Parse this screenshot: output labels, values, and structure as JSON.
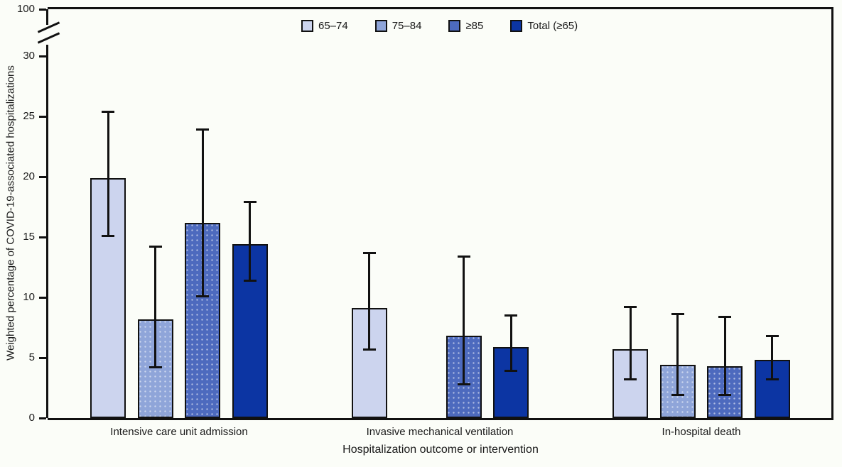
{
  "figure": {
    "y_axis_label": "Weighted percentage of COVID-19-associated hospitalizations",
    "x_axis_label": "Hospitalization outcome or intervention",
    "y_break_top_tick_label": "100"
  },
  "chart_data": {
    "type": "bar",
    "title": "",
    "xlabel": "Hospitalization outcome or intervention",
    "ylabel": "Weighted percentage of COVID-19-associated hospitalizations",
    "categories": [
      "Intensive care unit admission",
      "Invasive mechanical ventilation",
      "In-hospital death"
    ],
    "series": [
      {
        "name": "65–74",
        "color": "#ccd4ee",
        "texture": "none",
        "values": [
          19.9,
          9.1,
          5.7
        ],
        "ci": [
          [
            15.1,
            25.4
          ],
          [
            5.7,
            13.7
          ],
          [
            3.2,
            9.2
          ]
        ]
      },
      {
        "name": "75–84",
        "color": "#8fa5d9",
        "texture": "dots",
        "values": [
          8.2,
          null,
          4.4
        ],
        "ci": [
          [
            4.2,
            14.2
          ],
          null,
          [
            1.9,
            8.6
          ]
        ]
      },
      {
        "name": "≥85",
        "color": "#4d6abe",
        "texture": "dots",
        "values": [
          16.2,
          6.8,
          4.3
        ],
        "ci": [
          [
            10.1,
            23.9
          ],
          [
            2.8,
            13.4
          ],
          [
            1.9,
            8.4
          ]
        ]
      },
      {
        "name": "Total (≥65)",
        "color": "#0c35a3",
        "texture": "none",
        "values": [
          14.4,
          5.9,
          4.8
        ],
        "ci": [
          [
            11.4,
            17.9
          ],
          [
            3.9,
            8.5
          ],
          [
            3.2,
            6.8
          ]
        ]
      }
    ],
    "y_ticks": [
      0,
      5,
      10,
      15,
      20,
      25,
      30
    ],
    "y_break_top_tick": 100,
    "ylim_displayed": [
      0,
      30
    ],
    "axis_break": true,
    "grid": false,
    "legend_position": "top",
    "error_bars": "95% CI"
  }
}
